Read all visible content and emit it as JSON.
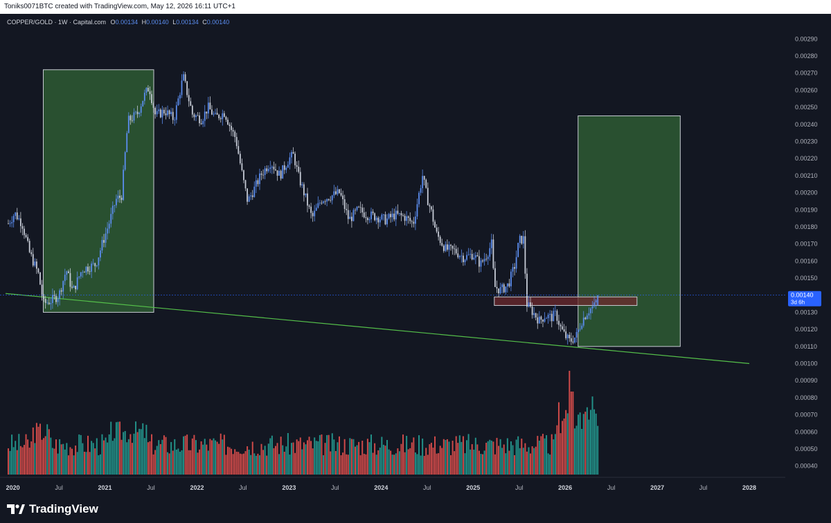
{
  "header": {
    "credit": "Toniks0071BTC created with TradingView.com, May 12, 2026 16:11 UTC+1"
  },
  "legend": {
    "symbol": "COPPER/GOLD · 1W · Capital.com",
    "open_label": "O",
    "open": "0.00134",
    "high_label": "H",
    "high": "0.00140",
    "low_label": "L",
    "low": "0.00134",
    "close_label": "C",
    "close": "0.00140"
  },
  "price_tag": {
    "value": "0.00140",
    "countdown": "3d 6h"
  },
  "footer": {
    "brand": "TradingView"
  },
  "colors": {
    "background": "#131722",
    "up": "#5b8def",
    "down": "#c6cbd6",
    "vol_up": "#26a69a",
    "vol_down": "#ef5350",
    "zone_green": "#2e5a33",
    "zone_red": "#6e2a2e",
    "trendline": "#55c04a",
    "price_line": "#2962ff"
  },
  "chart_data": {
    "type": "candlestick",
    "timeframe": "1W",
    "y_axis": {
      "ticks": [
        "0.00290",
        "0.00280",
        "0.00270",
        "0.00260",
        "0.00250",
        "0.00240",
        "0.00230",
        "0.00220",
        "0.00210",
        "0.00200",
        "0.00190",
        "0.00180",
        "0.00170",
        "0.00160",
        "0.00150",
        "0.00130",
        "0.00120",
        "0.00110",
        "0.00100",
        "0.00090",
        "0.00080",
        "0.00070",
        "0.00060",
        "0.00050",
        "0.00040"
      ],
      "range": [
        0.00035,
        0.00295
      ]
    },
    "x_axis": {
      "ticks": [
        {
          "t": 2020.0,
          "label": "2020",
          "bold": true
        },
        {
          "t": 2020.5,
          "label": "Jul",
          "bold": false
        },
        {
          "t": 2021.0,
          "label": "2021",
          "bold": true
        },
        {
          "t": 2021.5,
          "label": "Jul",
          "bold": false
        },
        {
          "t": 2022.0,
          "label": "2022",
          "bold": true
        },
        {
          "t": 2022.5,
          "label": "Jul",
          "bold": false
        },
        {
          "t": 2023.0,
          "label": "2023",
          "bold": true
        },
        {
          "t": 2023.5,
          "label": "Jul",
          "bold": false
        },
        {
          "t": 2024.0,
          "label": "2024",
          "bold": true
        },
        {
          "t": 2024.5,
          "label": "Jul",
          "bold": false
        },
        {
          "t": 2025.0,
          "label": "2025",
          "bold": true
        },
        {
          "t": 2025.5,
          "label": "Jul",
          "bold": false
        },
        {
          "t": 2026.0,
          "label": "2026",
          "bold": true
        },
        {
          "t": 2026.5,
          "label": "Jul",
          "bold": false
        },
        {
          "t": 2027.0,
          "label": "2027",
          "bold": true
        },
        {
          "t": 2027.5,
          "label": "Jul",
          "bold": false
        },
        {
          "t": 2028.0,
          "label": "2028",
          "bold": true
        }
      ],
      "range": [
        2019.92,
        2028.25
      ]
    },
    "price_keypoints": [
      [
        2019.95,
        0.00182
      ],
      [
        2020.02,
        0.00188
      ],
      [
        2020.1,
        0.00182
      ],
      [
        2020.18,
        0.00165
      ],
      [
        2020.28,
        0.00152
      ],
      [
        2020.33,
        0.00135
      ],
      [
        2020.42,
        0.00137
      ],
      [
        2020.5,
        0.0014
      ],
      [
        2020.58,
        0.00155
      ],
      [
        2020.65,
        0.00142
      ],
      [
        2020.75,
        0.00155
      ],
      [
        2020.9,
        0.00158
      ],
      [
        2020.97,
        0.0017
      ],
      [
        2021.05,
        0.00183
      ],
      [
        2021.12,
        0.00196
      ],
      [
        2021.18,
        0.00198
      ],
      [
        2021.25,
        0.00242
      ],
      [
        2021.35,
        0.00246
      ],
      [
        2021.42,
        0.00256
      ],
      [
        2021.48,
        0.00262
      ],
      [
        2021.55,
        0.00245
      ],
      [
        2021.65,
        0.00248
      ],
      [
        2021.75,
        0.00243
      ],
      [
        2021.85,
        0.00268
      ],
      [
        2021.95,
        0.00246
      ],
      [
        2022.05,
        0.00243
      ],
      [
        2022.12,
        0.0025
      ],
      [
        2022.2,
        0.00244
      ],
      [
        2022.3,
        0.00247
      ],
      [
        2022.38,
        0.00236
      ],
      [
        2022.42,
        0.00232
      ],
      [
        2022.5,
        0.00208
      ],
      [
        2022.55,
        0.00195
      ],
      [
        2022.62,
        0.00202
      ],
      [
        2022.7,
        0.00211
      ],
      [
        2022.8,
        0.00218
      ],
      [
        2022.9,
        0.0021
      ],
      [
        2023.0,
        0.0022
      ],
      [
        2023.05,
        0.00222
      ],
      [
        2023.1,
        0.0021
      ],
      [
        2023.18,
        0.00197
      ],
      [
        2023.25,
        0.00185
      ],
      [
        2023.35,
        0.00196
      ],
      [
        2023.45,
        0.00198
      ],
      [
        2023.55,
        0.002
      ],
      [
        2023.65,
        0.00184
      ],
      [
        2023.75,
        0.0019
      ],
      [
        2023.85,
        0.00187
      ],
      [
        2023.95,
        0.00186
      ],
      [
        2024.05,
        0.00184
      ],
      [
        2024.15,
        0.00187
      ],
      [
        2024.25,
        0.00186
      ],
      [
        2024.35,
        0.00182
      ],
      [
        2024.4,
        0.00196
      ],
      [
        2024.45,
        0.0021
      ],
      [
        2024.5,
        0.00197
      ],
      [
        2024.55,
        0.00188
      ],
      [
        2024.6,
        0.00176
      ],
      [
        2024.7,
        0.00167
      ],
      [
        2024.8,
        0.00166
      ],
      [
        2024.9,
        0.00162
      ],
      [
        2025.0,
        0.00164
      ],
      [
        2025.08,
        0.00158
      ],
      [
        2025.15,
        0.00164
      ],
      [
        2025.2,
        0.0017
      ],
      [
        2025.23,
        0.00145
      ],
      [
        2025.3,
        0.00143
      ],
      [
        2025.38,
        0.00146
      ],
      [
        2025.45,
        0.00157
      ],
      [
        2025.5,
        0.00172
      ],
      [
        2025.55,
        0.00173
      ],
      [
        2025.58,
        0.00135
      ],
      [
        2025.65,
        0.0013
      ],
      [
        2025.72,
        0.00125
      ],
      [
        2025.78,
        0.00128
      ],
      [
        2025.85,
        0.00127
      ],
      [
        2025.9,
        0.00129
      ],
      [
        2025.95,
        0.00121
      ],
      [
        2026.0,
        0.00116
      ],
      [
        2026.05,
        0.00113
      ],
      [
        2026.12,
        0.00116
      ],
      [
        2026.18,
        0.00125
      ],
      [
        2026.25,
        0.00131
      ],
      [
        2026.32,
        0.00134
      ],
      [
        2026.36,
        0.0014
      ]
    ],
    "rectangles": [
      {
        "name": "green-zone-left",
        "t1": 2020.33,
        "t2": 2021.53,
        "p1": 0.00272,
        "p2": 0.0013,
        "color": "green"
      },
      {
        "name": "green-zone-right",
        "t1": 2026.14,
        "t2": 2027.25,
        "p1": 0.00245,
        "p2": 0.0011,
        "color": "green"
      },
      {
        "name": "red-zone",
        "t1": 2025.23,
        "t2": 2026.78,
        "p1": 0.00139,
        "p2": 0.00134,
        "color": "red"
      }
    ],
    "trendline": {
      "t1": 2019.92,
      "p1": 0.00141,
      "t2": 2028.0,
      "p2": 0.001
    },
    "current_price": 0.0014,
    "volume": {
      "visible_range": [
        2019.92,
        2026.36
      ],
      "max_ratio": 0.72,
      "note": "weekly volume bars, spike near 2026"
    }
  }
}
